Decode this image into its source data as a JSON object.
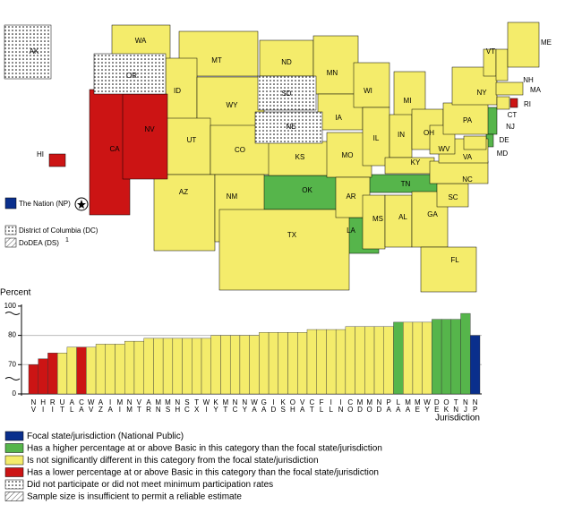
{
  "map": {
    "nation_label": "The Nation (NP)",
    "dc_label": "District of Columbia (DC)",
    "ds_label": "DoDEA (DS)",
    "ds_note": "1"
  },
  "legend": [
    {
      "label": "Focal state/jurisdiction (National Public)",
      "color": "#0a2f8c"
    },
    {
      "label": "Has a higher percentage at or above Basic in this category than the focal state/jurisdiction",
      "color": "#56b54b",
      "states": [
        "OK",
        "TN",
        "LA",
        "NJ",
        "DE"
      ]
    },
    {
      "label": "Is not significantly different in this category from the focal state/jurisdiction",
      "color": "#f4ec6b",
      "states": [
        "WA",
        "MT",
        "ID",
        "WY",
        "UT",
        "CO",
        "AZ",
        "NM",
        "ND",
        "KS",
        "TX",
        "MN",
        "IA",
        "MO",
        "AR",
        "WI",
        "IL",
        "MI",
        "IN",
        "OH",
        "KY",
        "MS",
        "AL",
        "GA",
        "FL",
        "SC",
        "NC",
        "VA",
        "WV",
        "PA",
        "NY",
        "VT",
        "NH",
        "ME",
        "MA",
        "CT",
        "MD"
      ]
    },
    {
      "label": "Has a lower percentage at or above Basic in this category than the focal state/jurisdiction",
      "color": "#cc1414",
      "states": [
        "CA",
        "NV",
        "HI",
        "RI"
      ]
    },
    {
      "label": "Did not participate or did not meet minimum participation rates",
      "pattern": "dots",
      "states": [
        "AK",
        "OR",
        "SD",
        "NE"
      ]
    },
    {
      "label": "Sample size is insufficient to permit a reliable estimate",
      "pattern": "hatch"
    }
  ],
  "chart_data": {
    "type": "bar",
    "y_label": "Percent",
    "x_label": "Jurisdiction",
    "categories": [
      "NV",
      "HI",
      "RI",
      "UT",
      "AL",
      "CA",
      "WV",
      "AZ",
      "IA",
      "MI",
      "NM",
      "VT",
      "AR",
      "MN",
      "MS",
      "NH",
      "SC",
      "TX",
      "WI",
      "KY",
      "MT",
      "NC",
      "NY",
      "WA",
      "GA",
      "ID",
      "KS",
      "OH",
      "VA",
      "CT",
      "FL",
      "IL",
      "IN",
      "CO",
      "MD",
      "MO",
      "ND",
      "PA",
      "LA",
      "MA",
      "ME",
      "WY",
      "DE",
      "OK",
      "TN",
      "NJ",
      "NP"
    ],
    "values": [
      70,
      72,
      74,
      74,
      76,
      76,
      76,
      77,
      77,
      77,
      78,
      78,
      79,
      79,
      79,
      79,
      79,
      79,
      79,
      80,
      80,
      80,
      80,
      80,
      82,
      82,
      82,
      82,
      82,
      84,
      84,
      84,
      84,
      86,
      86,
      86,
      86,
      86,
      89,
      89,
      89,
      89,
      91,
      91,
      91,
      95,
      80
    ],
    "colors": [
      "#cc1414",
      "#cc1414",
      "#cc1414",
      "#f4ec6b",
      "#f4ec6b",
      "#cc1414",
      "#f4ec6b",
      "#f4ec6b",
      "#f4ec6b",
      "#f4ec6b",
      "#f4ec6b",
      "#f4ec6b",
      "#f4ec6b",
      "#f4ec6b",
      "#f4ec6b",
      "#f4ec6b",
      "#f4ec6b",
      "#f4ec6b",
      "#f4ec6b",
      "#f4ec6b",
      "#f4ec6b",
      "#f4ec6b",
      "#f4ec6b",
      "#f4ec6b",
      "#f4ec6b",
      "#f4ec6b",
      "#f4ec6b",
      "#f4ec6b",
      "#f4ec6b",
      "#f4ec6b",
      "#f4ec6b",
      "#f4ec6b",
      "#f4ec6b",
      "#f4ec6b",
      "#f4ec6b",
      "#f4ec6b",
      "#f4ec6b",
      "#f4ec6b",
      "#56b54b",
      "#f4ec6b",
      "#f4ec6b",
      "#f4ec6b",
      "#56b54b",
      "#56b54b",
      "#56b54b",
      "#56b54b",
      "#0a2f8c"
    ],
    "ylim": [
      0,
      100
    ],
    "yticks": [
      0,
      70,
      80,
      100
    ]
  }
}
